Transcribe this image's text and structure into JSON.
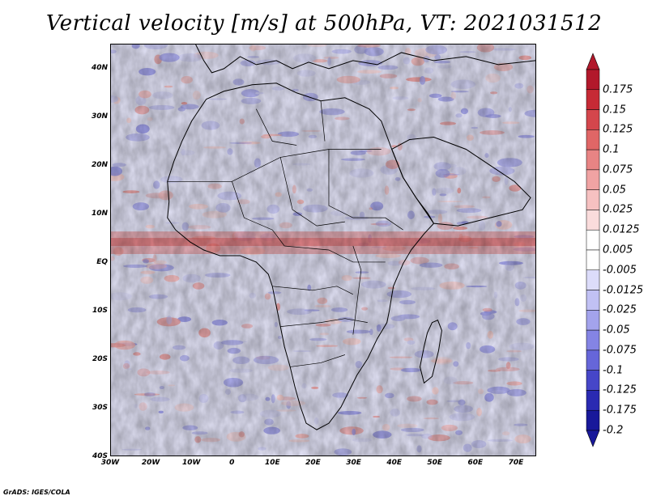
{
  "title": "Vertical velocity [m/s] at 500hPa, VT: 2021031512",
  "footer": "GrADS: IGES/COLA",
  "map": {
    "variable": "vertical velocity",
    "level": "500hPa",
    "valid_time": "2021031512",
    "region": "Africa",
    "lon_range": [
      -30,
      75
    ],
    "lat_range": [
      -40,
      45
    ]
  },
  "y_axis": {
    "labels": [
      "40N",
      "30N",
      "20N",
      "10N",
      "EQ",
      "10S",
      "20S",
      "30S",
      "40S"
    ],
    "values": [
      40,
      30,
      20,
      10,
      0,
      -10,
      -20,
      -30,
      -40
    ]
  },
  "x_axis": {
    "labels": [
      "30W",
      "20W",
      "10W",
      "0",
      "10E",
      "20E",
      "30E",
      "40E",
      "50E",
      "60E",
      "70E"
    ],
    "values": [
      -30,
      -20,
      -10,
      0,
      10,
      20,
      30,
      40,
      50,
      60,
      70
    ]
  },
  "colorbar": {
    "labels": [
      "0.175",
      "0.15",
      "0.125",
      "0.1",
      "0.075",
      "0.05",
      "0.025",
      "0.0125",
      "0.005",
      "-0.005",
      "-0.0125",
      "-0.025",
      "-0.05",
      "-0.075",
      "-0.1",
      "-0.125",
      "-0.175",
      "-0.2"
    ],
    "colors": [
      "#b2182b",
      "#c62a35",
      "#d4464c",
      "#e06666",
      "#e88484",
      "#f0a3a3",
      "#f6c1c1",
      "#fadcdc",
      "#ffffff",
      "#ffffff",
      "#dcdcfa",
      "#c1c1f4",
      "#a3a3ec",
      "#8484e4",
      "#6666d9",
      "#4646c8",
      "#2a2ab2",
      "#18189a"
    ]
  }
}
